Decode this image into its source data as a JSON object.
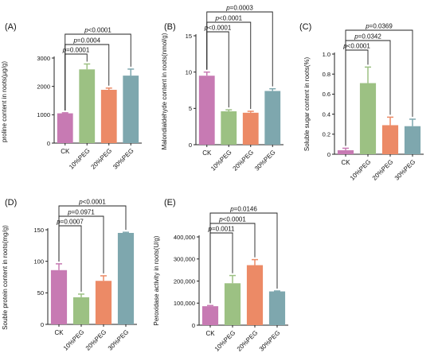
{
  "colors": {
    "ck": "#c77ab3",
    "peg10": "#9cc183",
    "peg20": "#ec8a66",
    "peg30": "#7ea7ae",
    "ink": "#222222"
  },
  "chart_data": [
    {
      "panel_label": "(A)",
      "type": "bar",
      "categories": [
        "CK",
        "10%PEG",
        "20%PEG",
        "30%PEG"
      ],
      "values": [
        1050,
        2600,
        1880,
        2380
      ],
      "errors": [
        20,
        190,
        60,
        230
      ],
      "ylabel": "proline content in roots(μg/g)",
      "ylim": [
        0,
        3000
      ],
      "yticks": [
        "0",
        "1000",
        "2000",
        "3000"
      ],
      "comparisons": [
        {
          "to": 1,
          "text": "p=0.0001"
        },
        {
          "to": 2,
          "text": "p=0.0004"
        },
        {
          "to": 3,
          "text": "p<0.0001"
        }
      ]
    },
    {
      "panel_label": "(B)",
      "type": "bar",
      "categories": [
        "CK",
        "10%PEG",
        "20%PEG",
        "30%PEG"
      ],
      "values": [
        9.5,
        4.6,
        4.4,
        7.4
      ],
      "errors": [
        0.5,
        0.2,
        0.2,
        0.3
      ],
      "ylabel": "Malondialdehyde content in roots(nmol/g)",
      "ylim": [
        0,
        15
      ],
      "yticks": [
        "0",
        "5",
        "10",
        "15"
      ],
      "comparisons": [
        {
          "to": 1,
          "text": "p<0.0001"
        },
        {
          "to": 2,
          "text": "p<0.0001"
        },
        {
          "to": 3,
          "text": "p=0.0003"
        }
      ]
    },
    {
      "panel_label": "(C)",
      "type": "bar",
      "categories": [
        "CK",
        "10%PEG",
        "20%PEG",
        "30%PEG"
      ],
      "values": [
        0.04,
        0.71,
        0.29,
        0.28
      ],
      "errors": [
        0.02,
        0.16,
        0.08,
        0.07
      ],
      "ylabel": "Soluble sugar content in roots(%)",
      "ylim": [
        0,
        1.0
      ],
      "yticks": [
        "0",
        "0.2",
        "0.4",
        "0.6",
        "0.8",
        "1.0"
      ],
      "comparisons": [
        {
          "to": 1,
          "text": "p<0.0001"
        },
        {
          "to": 2,
          "text": "p=0.0342"
        },
        {
          "to": 3,
          "text": "p=0.0369"
        }
      ]
    },
    {
      "panel_label": "(D)",
      "type": "bar",
      "categories": [
        "CK",
        "10%PEG",
        "20%PEG",
        "30%PEG"
      ],
      "values": [
        86,
        43,
        69,
        145
      ],
      "errors": [
        10,
        5,
        8,
        1
      ],
      "ylabel": "Souble protein content in roots(mg/g)",
      "ylim": [
        0,
        150
      ],
      "yticks": [
        "0",
        "50",
        "100",
        "150"
      ],
      "comparisons": [
        {
          "to": 1,
          "text": "p=0.0007"
        },
        {
          "to": 2,
          "text": "p=0.0971"
        },
        {
          "to": 3,
          "text": "p<0.0001"
        }
      ]
    },
    {
      "panel_label": "(E)",
      "type": "bar",
      "categories": [
        "CK",
        "10%PEG",
        "20%PEG",
        "30%PEG"
      ],
      "values": [
        86000,
        190000,
        272000,
        153000
      ],
      "errors": [
        3000,
        35000,
        25000,
        2000
      ],
      "ylabel": "Peroxidase activity in roots(U/g)",
      "ylim": [
        0,
        400000
      ],
      "yticks": [
        "0",
        "100,000",
        "200,000",
        "300,000",
        "400,000"
      ],
      "comparisons": [
        {
          "to": 1,
          "text": "p=0.0011"
        },
        {
          "to": 2,
          "text": "p<0.0001"
        },
        {
          "to": 3,
          "text": "p=0.0146"
        }
      ]
    }
  ]
}
